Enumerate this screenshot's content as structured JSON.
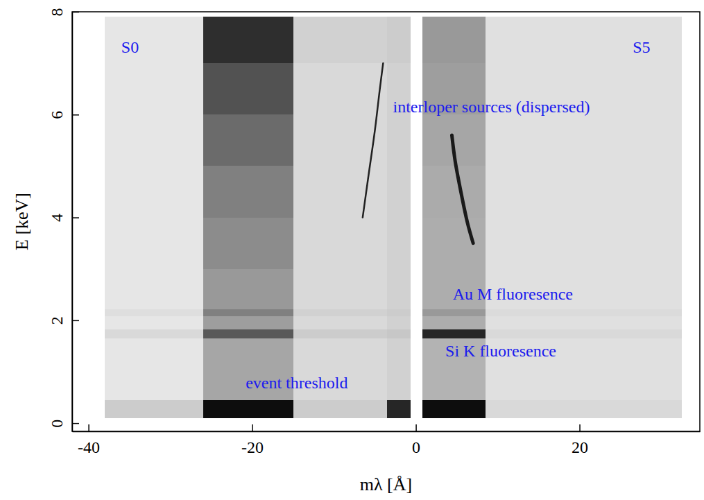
{
  "chart_data": {
    "type": "heatmap",
    "xlabel": "mλ [Å]",
    "ylabel": "E [keV]",
    "xlim": [
      -42,
      34.7
    ],
    "ylim": [
      -0.16,
      8
    ],
    "xticks": [
      -40,
      -20,
      0,
      20
    ],
    "yticks": [
      0,
      2,
      4,
      6,
      8
    ],
    "color": "#000000",
    "x_edges": [
      -38,
      -26,
      -15,
      -3.5,
      -0.6,
      0.8,
      8.5,
      32.5
    ],
    "y_edges": [
      0.1,
      0.45,
      1,
      1.65,
      1.82,
      2.08,
      2.22,
      3,
      4,
      5,
      6,
      7,
      7.9
    ],
    "cells": [
      [
        0.2,
        0.95,
        0.2,
        0.85,
        0,
        0.95,
        0.15
      ],
      [
        0.1,
        0.35,
        0.15,
        0.18,
        0,
        0.3,
        0.12
      ],
      [
        0.1,
        0.35,
        0.15,
        0.18,
        0,
        0.3,
        0.12
      ],
      [
        0.15,
        0.65,
        0.2,
        0.22,
        0,
        0.85,
        0.15
      ],
      [
        0.1,
        0.38,
        0.15,
        0.18,
        0,
        0.32,
        0.12
      ],
      [
        0.13,
        0.5,
        0.18,
        0.2,
        0,
        0.4,
        0.14
      ],
      [
        0.1,
        0.4,
        0.15,
        0.18,
        0,
        0.32,
        0.12
      ],
      [
        0.1,
        0.45,
        0.15,
        0.18,
        0,
        0.32,
        0.12
      ],
      [
        0.1,
        0.5,
        0.15,
        0.18,
        0,
        0.33,
        0.12
      ],
      [
        0.1,
        0.58,
        0.15,
        0.18,
        0,
        0.35,
        0.12
      ],
      [
        0.1,
        0.68,
        0.15,
        0.18,
        0,
        0.38,
        0.12
      ],
      [
        0.1,
        0.82,
        0.18,
        0.2,
        0,
        0.4,
        0.12
      ]
    ],
    "tracks": [
      {
        "x": [
          -6.5,
          -5.8,
          -5.0,
          -4.4,
          -4.0
        ],
        "y": [
          4.0,
          4.8,
          5.7,
          6.5,
          7.0
        ]
      },
      {
        "x": [
          4.4,
          4.8,
          5.5,
          6.3,
          7.0
        ],
        "y": [
          5.6,
          5.1,
          4.5,
          3.9,
          3.5
        ]
      }
    ],
    "annotations": [
      {
        "text": "S0",
        "x": -36,
        "y": 7.2
      },
      {
        "text": "S5",
        "x": 26.5,
        "y": 7.2
      },
      {
        "text": "interloper sources (dispersed)",
        "x": -2.8,
        "y": 6.05
      },
      {
        "text": "Au M fluoresence",
        "x": 4.5,
        "y": 2.4
      },
      {
        "text": "Si K fluoresence",
        "x": 3.6,
        "y": 1.3
      },
      {
        "text": "event threshold",
        "x": -20.8,
        "y": 0.68
      }
    ]
  }
}
